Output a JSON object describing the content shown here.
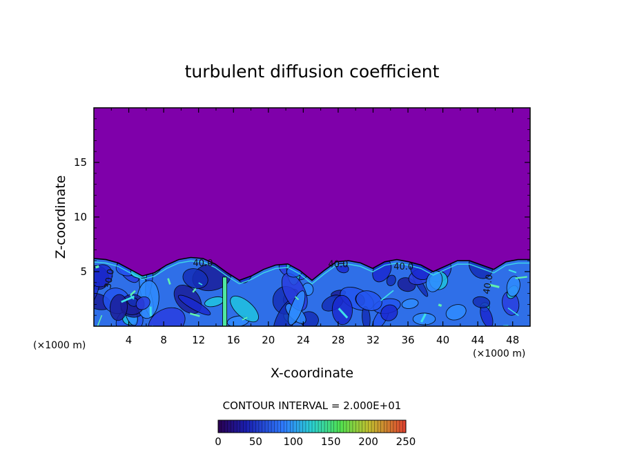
{
  "chart_data": {
    "type": "heatmap",
    "title": "turbulent diffusion coefficient",
    "xlabel": "X-coordinate",
    "ylabel": "Z-coordinate",
    "x_unit": "(×1000 m)",
    "xlim": [
      0,
      50
    ],
    "ylim": [
      0,
      20
    ],
    "x_ticks": [
      4,
      8,
      12,
      16,
      20,
      24,
      28,
      32,
      36,
      40,
      44,
      48
    ],
    "y_ticks": [
      5,
      10,
      15
    ],
    "contour_interval_text": "CONTOUR INTERVAL = 2.000E+01",
    "colorbar": {
      "min": 0,
      "max": 250,
      "ticks": [
        0,
        50,
        100,
        150,
        200,
        250
      ]
    },
    "background_color": "#7f00aa",
    "boundary_layer_top_km": [
      6.2,
      6.1,
      5.8,
      5.2,
      4.6,
      4.9,
      5.6,
      6.1,
      6.3,
      6.2,
      5.7,
      4.9,
      4.2,
      4.6,
      5.2,
      5.6,
      5.7,
      5.1,
      4.2,
      5.1,
      5.9,
      6.0,
      5.8,
      5.3,
      5.9,
      6.1,
      5.9,
      5.6,
      5.0,
      5.5,
      6.0,
      6.0,
      5.6,
      5.2,
      5.9,
      6.1,
      6.1
    ],
    "contour_labels": [
      "40.0",
      "40.0",
      "40.0",
      "40.0",
      "30.0"
    ]
  }
}
